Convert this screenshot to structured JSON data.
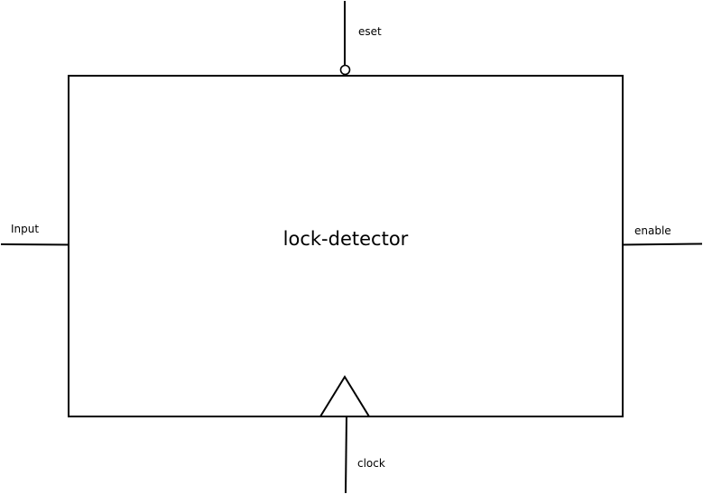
{
  "block": {
    "name": "lock-detector"
  },
  "pins": {
    "reset": {
      "label": "eset",
      "marker": "inversion-bubble"
    },
    "input": {
      "label": "Input"
    },
    "enable": {
      "label": "enable"
    },
    "clock": {
      "label": "clock",
      "marker": "clock-triangle"
    }
  },
  "colors": {
    "stroke": "#000000",
    "background": "#ffffff"
  }
}
